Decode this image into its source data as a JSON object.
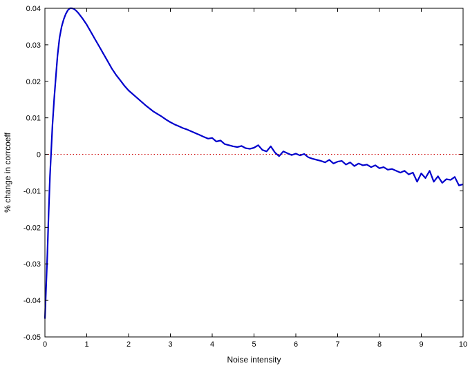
{
  "chart_data": {
    "type": "line",
    "title": "",
    "xlabel": "Noise intensity",
    "ylabel": "% change in corrcoeff",
    "xlim": [
      0,
      10
    ],
    "ylim": [
      -0.05,
      0.04
    ],
    "xticks": [
      0,
      1,
      2,
      3,
      4,
      5,
      6,
      7,
      8,
      9,
      10
    ],
    "yticks": [
      -0.05,
      -0.04,
      -0.03,
      -0.02,
      -0.01,
      0,
      0.01,
      0.02,
      0.03,
      0.04
    ],
    "xtick_labels": [
      "0",
      "1",
      "2",
      "3",
      "4",
      "5",
      "6",
      "7",
      "8",
      "9",
      "10"
    ],
    "ytick_labels": [
      "-0.05",
      "-0.04",
      "-0.03",
      "-0.02",
      "-0.01",
      "0",
      "0.01",
      "0.02",
      "0.03",
      "0.04"
    ],
    "grid": false,
    "series": [
      {
        "color": "#0000cc",
        "x": [
          0.0,
          0.03,
          0.06,
          0.09,
          0.12,
          0.15,
          0.18,
          0.22,
          0.26,
          0.3,
          0.35,
          0.4,
          0.45,
          0.5,
          0.55,
          0.6,
          0.65,
          0.7,
          0.75,
          0.8,
          0.9,
          1.0,
          1.1,
          1.2,
          1.3,
          1.4,
          1.5,
          1.6,
          1.7,
          1.8,
          1.9,
          2.0,
          2.2,
          2.4,
          2.6,
          2.8,
          2.9,
          3.0,
          3.1,
          3.2,
          3.3,
          3.4,
          3.5,
          3.6,
          3.7,
          3.8,
          3.9,
          4.0,
          4.1,
          4.2,
          4.3,
          4.4,
          4.5,
          4.6,
          4.7,
          4.8,
          4.9,
          5.0,
          5.1,
          5.2,
          5.3,
          5.4,
          5.5,
          5.6,
          5.7,
          5.8,
          5.9,
          6.0,
          6.1,
          6.2,
          6.3,
          6.4,
          6.5,
          6.6,
          6.7,
          6.8,
          6.9,
          7.0,
          7.1,
          7.2,
          7.3,
          7.4,
          7.5,
          7.6,
          7.7,
          7.8,
          7.9,
          8.0,
          8.1,
          8.2,
          8.3,
          8.4,
          8.5,
          8.6,
          8.7,
          8.8,
          8.9,
          9.0,
          9.1,
          9.2,
          9.3,
          9.4,
          9.5,
          9.6,
          9.7,
          9.8,
          9.9,
          10.0
        ],
        "y": [
          -0.045,
          -0.036,
          -0.027,
          -0.016,
          -0.006,
          0.001,
          0.008,
          0.015,
          0.021,
          0.027,
          0.032,
          0.035,
          0.037,
          0.0385,
          0.0395,
          0.04,
          0.04,
          0.0398,
          0.0393,
          0.0387,
          0.0372,
          0.0355,
          0.0335,
          0.0315,
          0.0295,
          0.0275,
          0.0255,
          0.0235,
          0.0218,
          0.0203,
          0.0188,
          0.0175,
          0.0155,
          0.0135,
          0.0117,
          0.0103,
          0.0095,
          0.0088,
          0.0082,
          0.0077,
          0.0072,
          0.0068,
          0.0063,
          0.0058,
          0.0053,
          0.0048,
          0.0043,
          0.0045,
          0.0035,
          0.0038,
          0.0028,
          0.0025,
          0.0022,
          0.002,
          0.0023,
          0.0017,
          0.0015,
          0.0018,
          0.0025,
          0.0012,
          0.0008,
          0.0022,
          0.0005,
          -0.0005,
          0.0008,
          0.0003,
          -0.0002,
          0.0002,
          -0.0003,
          0.0001,
          -0.0008,
          -0.0012,
          -0.0015,
          -0.0018,
          -0.0022,
          -0.0015,
          -0.0025,
          -0.002,
          -0.0018,
          -0.0028,
          -0.0022,
          -0.0032,
          -0.0025,
          -0.003,
          -0.0028,
          -0.0035,
          -0.003,
          -0.0038,
          -0.0035,
          -0.0042,
          -0.004,
          -0.0045,
          -0.005,
          -0.0045,
          -0.0055,
          -0.005,
          -0.0075,
          -0.0052,
          -0.0065,
          -0.0045,
          -0.0075,
          -0.006,
          -0.0078,
          -0.0068,
          -0.007,
          -0.0062,
          -0.0085,
          -0.0082
        ]
      }
    ],
    "reference_line": {
      "y": 0,
      "color": "#cc0000",
      "style": "dotted"
    }
  }
}
